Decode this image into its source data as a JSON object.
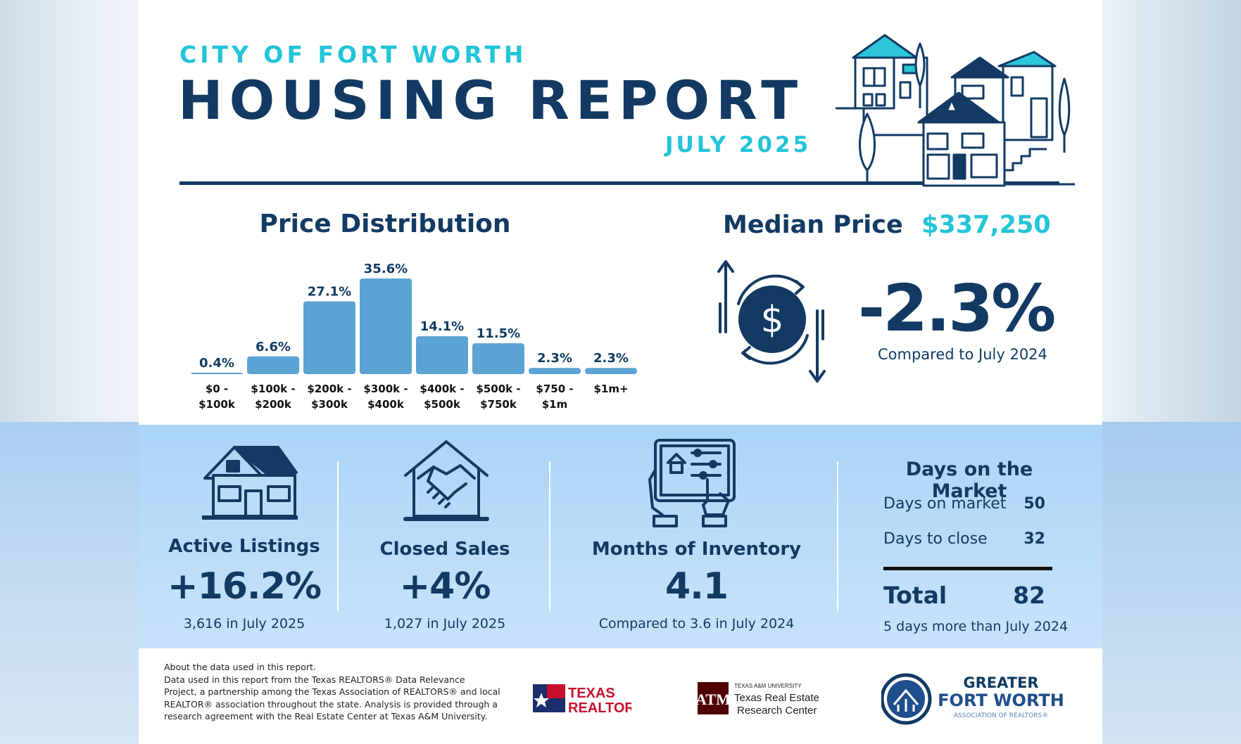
{
  "header": {
    "kicker": "CITY OF FORT WORTH",
    "title": "HOUSING REPORT",
    "month": "JULY 2025"
  },
  "price_distribution": {
    "title": "Price Distribution"
  },
  "chart_data": {
    "type": "bar",
    "title": "Price Distribution",
    "categories": [
      [
        "$0 -",
        "$100k"
      ],
      [
        "$100k -",
        "$200k"
      ],
      [
        "$200k -",
        "$300k"
      ],
      [
        "$300k -",
        "$400k"
      ],
      [
        "$400k -",
        "$500k"
      ],
      [
        "$500k -",
        "$750k"
      ],
      [
        "$750 -",
        "$1m"
      ],
      [
        "$1m+"
      ]
    ],
    "values": [
      0.4,
      6.6,
      27.1,
      35.6,
      14.1,
      11.5,
      2.3,
      2.3
    ],
    "value_labels": [
      "0.4%",
      "6.6%",
      "27.1%",
      "35.6%",
      "14.1%",
      "11.5%",
      "2.3%",
      "2.3%"
    ],
    "ylim": [
      0,
      35.6
    ],
    "bar_color": "#5ba3d4",
    "grid": false
  },
  "median_price": {
    "label": "Median Price",
    "value": "$337,250",
    "change": "-2.3%",
    "compare": "Compared to July 2024"
  },
  "stats": {
    "active": {
      "label": "Active Listings",
      "value": "+16.2%",
      "sub": "3,616 in July 2025"
    },
    "closed": {
      "label": "Closed Sales",
      "value": "+4%",
      "sub": "1,027 in July 2025"
    },
    "inventory": {
      "label": "Months of Inventory",
      "value": "4.1",
      "sub": "Compared to 3.6 in July 2024"
    },
    "days": {
      "title": "Days on the Market",
      "rows": [
        {
          "label": "Days on market",
          "value": "50"
        },
        {
          "label": "Days to close",
          "value": "32"
        }
      ],
      "total_label": "Total",
      "total_value": "82",
      "note": "5 days more than July 2024"
    }
  },
  "footer": {
    "about": [
      "About the data used in this report.",
      "Data used in this report from the Texas REALTORS® Data Relevance",
      "Project, a partnership among the Texas Association of REALTORS® and local",
      "REALTOR® association throughout the state. Analysis is provided through a",
      "research agreement with the Real Estate Center at Texas A&M University."
    ],
    "logo_texas_realtors": [
      "TEXAS",
      "REALTORS"
    ],
    "logo_tamu": {
      "line1": "TEXAS A&M UNIVERSITY",
      "line2": "Texas Real Estate",
      "line3": "Research Center"
    },
    "logo_gfw": {
      "line1": "GREATER",
      "line2": "FORT WORTH",
      "line3": "ASSOCIATION OF REALTORS®"
    }
  },
  "colors": {
    "navy": "#123a63",
    "cyan": "#22c4d8",
    "bar": "#5ba3d4",
    "stats_bg": "#b9dcf8"
  }
}
